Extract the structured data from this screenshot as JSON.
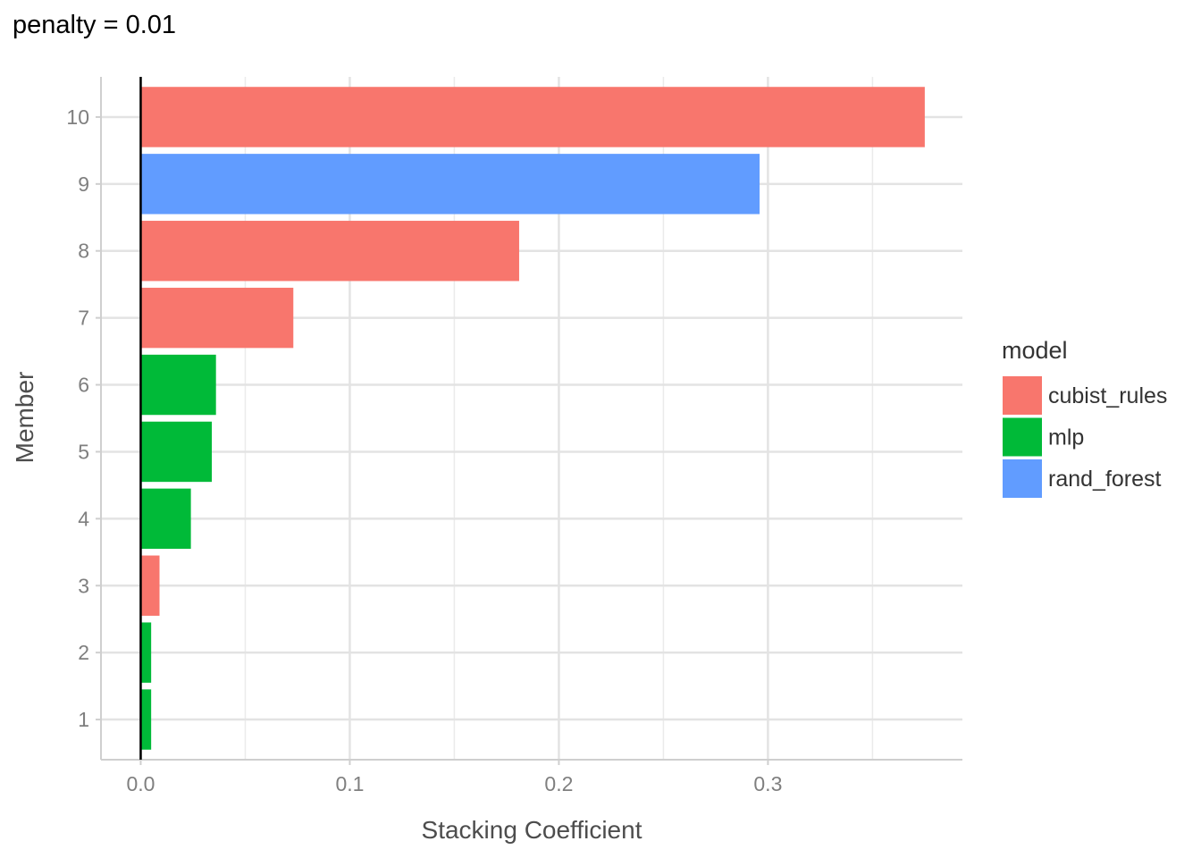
{
  "chart_data": {
    "type": "bar",
    "orientation": "horizontal",
    "title": "penalty = 0.01",
    "xlabel": "Stacking Coefficient",
    "ylabel": "Member",
    "xlim": [
      -0.019,
      0.393
    ],
    "x_ticks": [
      0.0,
      0.1,
      0.2,
      0.3
    ],
    "x_tick_labels": [
      "0.0",
      "0.1",
      "0.2",
      "0.3"
    ],
    "categories": [
      "1",
      "2",
      "3",
      "4",
      "5",
      "6",
      "7",
      "8",
      "9",
      "10"
    ],
    "values": [
      0.005,
      0.005,
      0.009,
      0.024,
      0.034,
      0.036,
      0.073,
      0.181,
      0.296,
      0.375
    ],
    "model": [
      "mlp",
      "mlp",
      "cubist_rules",
      "mlp",
      "mlp",
      "mlp",
      "cubist_rules",
      "cubist_rules",
      "rand_forest",
      "cubist_rules"
    ],
    "reference_line_x": 0,
    "grid": true,
    "legend": {
      "title": "model",
      "placement": "right",
      "entries": [
        {
          "label": "cubist_rules",
          "color": "#F8766D"
        },
        {
          "label": "mlp",
          "color": "#00BA38"
        },
        {
          "label": "rand_forest",
          "color": "#619CFF"
        }
      ]
    }
  }
}
